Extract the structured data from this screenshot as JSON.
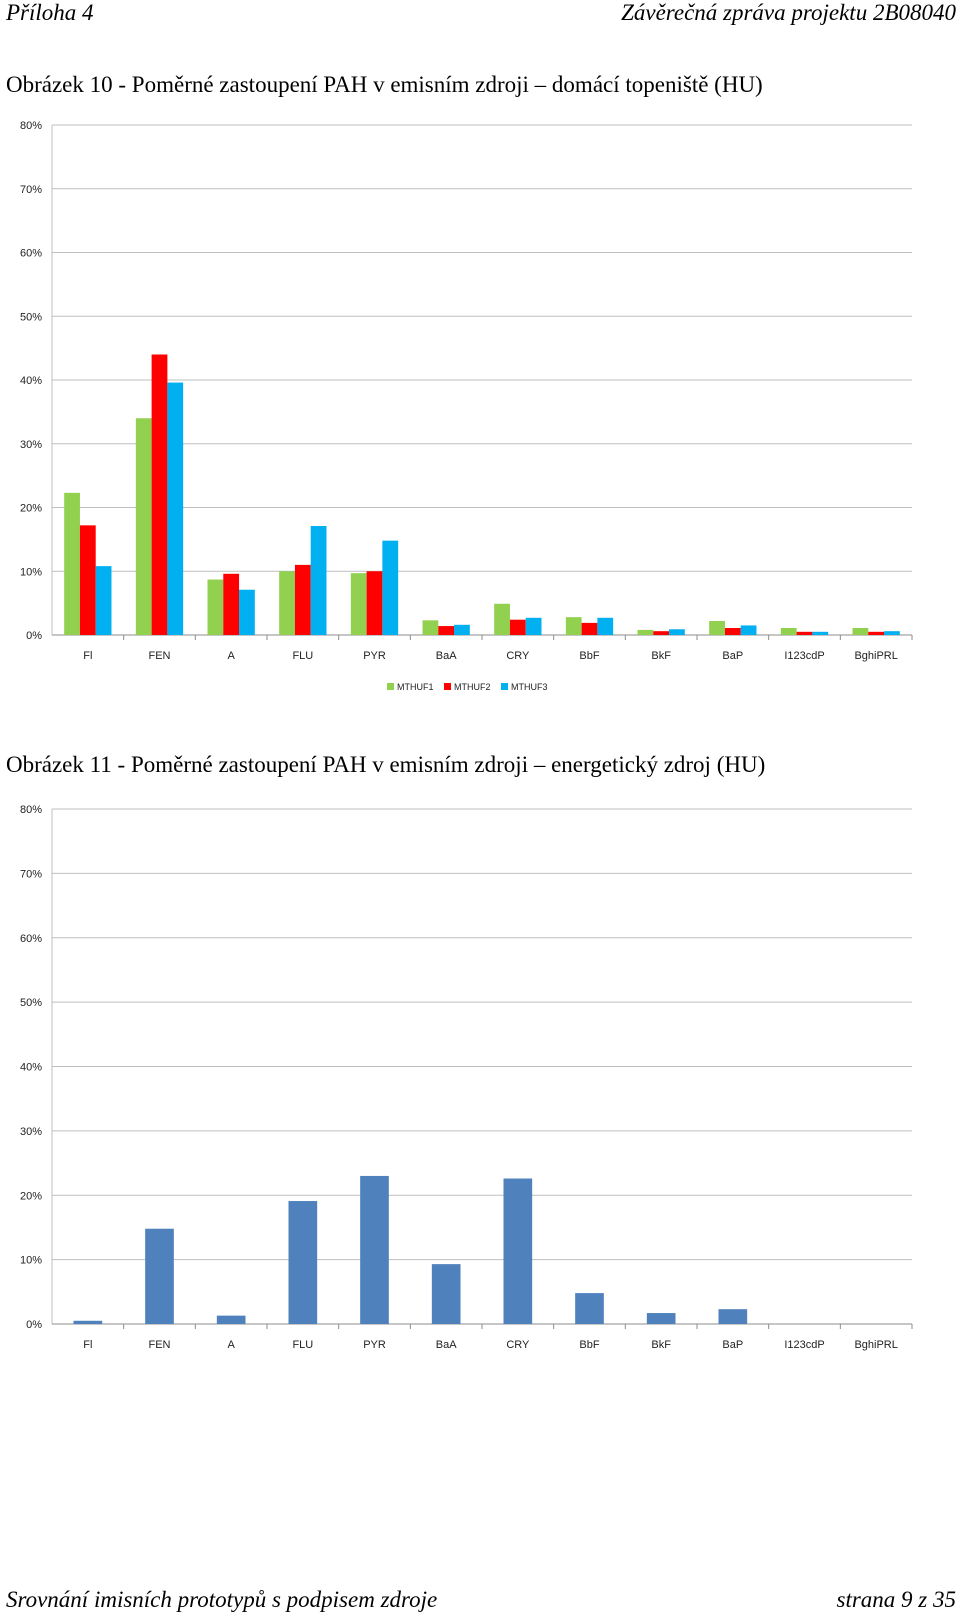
{
  "header": {
    "left": "Příloha 4",
    "right": "Závěrečná zpráva projektu 2B08040"
  },
  "captions": [
    "Obrázek 10 - Poměrné zastoupení PAH v emisním zdroji – domácí topeniště (HU)",
    "Obrázek 11 - Poměrné zastoupení PAH v emisním zdroji – energetický zdroj (HU)"
  ],
  "footer": {
    "left": "Srovnání imisních prototypů s podpisem zdroje",
    "right": "strana 9 z 35"
  },
  "chart_data": [
    {
      "type": "bar",
      "ylim": [
        0,
        80
      ],
      "yticks": [
        "0%",
        "10%",
        "20%",
        "30%",
        "40%",
        "50%",
        "60%",
        "70%",
        "80%"
      ],
      "grid": true,
      "legend_position": "bottom",
      "categories": [
        "Fl",
        "FEN",
        "A",
        "FLU",
        "PYR",
        "BaA",
        "CRY",
        "BbF",
        "BkF",
        "BaP",
        "I123cdP",
        "BghiPRL"
      ],
      "series": [
        {
          "name": "MTHUF1",
          "color": "#92d050",
          "values": [
            22.3,
            34.0,
            8.7,
            10.0,
            9.7,
            2.3,
            4.9,
            2.8,
            0.8,
            2.2,
            1.1,
            1.1
          ]
        },
        {
          "name": "MTHUF2",
          "color": "#ff0000",
          "values": [
            17.2,
            44.0,
            9.6,
            11.0,
            10.0,
            1.4,
            2.4,
            1.9,
            0.6,
            1.1,
            0.5,
            0.5
          ]
        },
        {
          "name": "MTHUF3",
          "color": "#00b0f0",
          "values": [
            10.8,
            39.6,
            7.1,
            17.1,
            14.8,
            1.6,
            2.7,
            2.7,
            0.9,
            1.5,
            0.5,
            0.6
          ]
        }
      ]
    },
    {
      "type": "bar",
      "ylim": [
        0,
        80
      ],
      "yticks": [
        "0%",
        "10%",
        "20%",
        "30%",
        "40%",
        "50%",
        "60%",
        "70%",
        "80%"
      ],
      "grid": true,
      "categories": [
        "Fl",
        "FEN",
        "A",
        "FLU",
        "PYR",
        "BaA",
        "CRY",
        "BbF",
        "BkF",
        "BaP",
        "I123cdP",
        "BghiPRL"
      ],
      "series": [
        {
          "color": "#4f81bd",
          "values": [
            0.5,
            14.8,
            1.3,
            19.1,
            23.0,
            9.3,
            22.6,
            4.8,
            1.7,
            2.3,
            0,
            0
          ]
        }
      ]
    }
  ]
}
